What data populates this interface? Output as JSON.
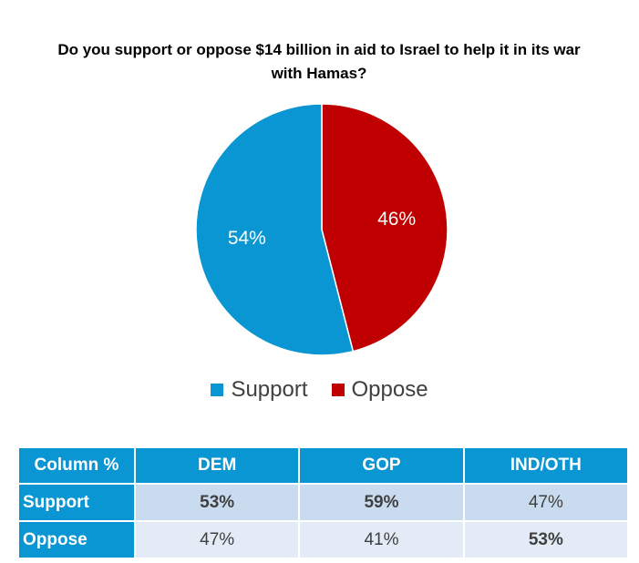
{
  "chart_data": {
    "type": "pie",
    "title": "Do you support or oppose $14 billion in aid to Israel to help it in its war with Hamas?",
    "series": [
      {
        "name": "Support",
        "value": 54,
        "label": "54%",
        "color": "#0a96d2"
      },
      {
        "name": "Oppose",
        "value": 46,
        "label": "46%",
        "color": "#c00000"
      }
    ],
    "legend": {
      "placement": "bottom"
    }
  },
  "table": {
    "headers": [
      "Column %",
      "DEM",
      "GOP",
      "IND/OTH"
    ],
    "rows": [
      {
        "label": "Support",
        "values": [
          "53%",
          "59%",
          "47%"
        ],
        "bold": [
          true,
          true,
          false
        ]
      },
      {
        "label": "Oppose",
        "values": [
          "47%",
          "41%",
          "53%"
        ],
        "bold": [
          false,
          false,
          true
        ]
      }
    ]
  }
}
